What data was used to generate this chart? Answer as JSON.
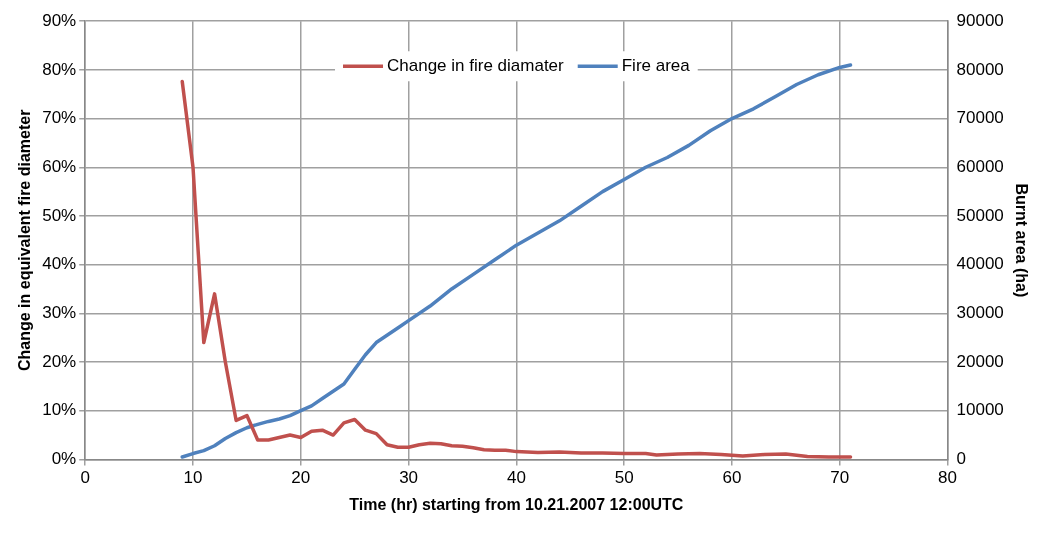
{
  "chart_data": {
    "type": "line",
    "xlabel": "Time (hr) starting from 10.21.2007 12:00UTC",
    "ylabel": "Change in equivalent fire diameter",
    "y2label": "Burnt area (ha)",
    "xlim": [
      0,
      80
    ],
    "xticks": [
      0,
      10,
      20,
      30,
      40,
      50,
      60,
      70,
      80
    ],
    "ylim": [
      0,
      90
    ],
    "yticks": [
      {
        "value": 0,
        "label": "0%"
      },
      {
        "value": 10,
        "label": "10%"
      },
      {
        "value": 20,
        "label": "20%"
      },
      {
        "value": 30,
        "label": "30%"
      },
      {
        "value": 40,
        "label": "40%"
      },
      {
        "value": 50,
        "label": "50%"
      },
      {
        "value": 60,
        "label": "60%"
      },
      {
        "value": 70,
        "label": "70%"
      },
      {
        "value": 80,
        "label": "80%"
      },
      {
        "value": 90,
        "label": "90%"
      }
    ],
    "y2lim": [
      0,
      90000
    ],
    "y2ticks": [
      0,
      10000,
      20000,
      30000,
      40000,
      50000,
      60000,
      70000,
      80000,
      90000
    ],
    "grid": true,
    "legend": "top",
    "marker": "none",
    "line_style": "solid",
    "series": [
      {
        "name": "Change in fire diamater",
        "color": "#c0504d",
        "x": [
          9,
          10,
          11,
          12,
          13,
          14,
          15,
          16,
          17,
          18,
          19,
          20,
          21,
          22,
          23,
          24,
          25,
          26,
          27,
          28,
          29,
          30,
          31,
          32,
          33,
          34,
          35,
          36,
          37,
          38,
          39,
          40,
          42,
          44,
          46,
          48,
          50,
          52,
          53,
          55,
          57,
          59,
          61,
          63,
          65,
          67,
          69,
          71
        ],
        "values": [
          77.6,
          60,
          24,
          34,
          20,
          8,
          9,
          4,
          4,
          4.5,
          5,
          4.5,
          5.8,
          6,
          5,
          7.5,
          8.2,
          6,
          5.3,
          3,
          2.5,
          2.5,
          3,
          3.3,
          3.2,
          2.8,
          2.7,
          2.4,
          2,
          1.9,
          1.9,
          1.6,
          1.4,
          1.5,
          1.3,
          1.3,
          1.2,
          1.2,
          0.9,
          1.1,
          1.2,
          1,
          0.7,
          1,
          1.1,
          0.6,
          0.5,
          0.5
        ]
      },
      {
        "name": "Fire area",
        "color": "#4f81bd",
        "axis": "y2",
        "x": [
          9,
          10,
          11,
          12,
          13,
          14,
          15,
          16,
          17,
          18,
          19,
          20,
          21,
          22,
          23,
          24,
          25,
          26,
          27,
          28,
          29,
          30,
          32,
          34,
          36,
          38,
          40,
          42,
          44,
          46,
          48,
          50,
          52,
          54,
          56,
          58,
          60,
          62,
          64,
          66,
          68,
          70,
          71
        ],
        "values": [
          500,
          1200,
          1800,
          2800,
          4300,
          5500,
          6500,
          7200,
          7800,
          8300,
          9000,
          10000,
          11000,
          12500,
          14000,
          15500,
          18500,
          21500,
          24000,
          25500,
          27000,
          28500,
          31500,
          35000,
          38000,
          41000,
          44000,
          46500,
          49000,
          52000,
          55000,
          57500,
          60000,
          62000,
          64500,
          67500,
          70000,
          72000,
          74500,
          77000,
          79000,
          80500,
          81000
        ]
      }
    ]
  }
}
